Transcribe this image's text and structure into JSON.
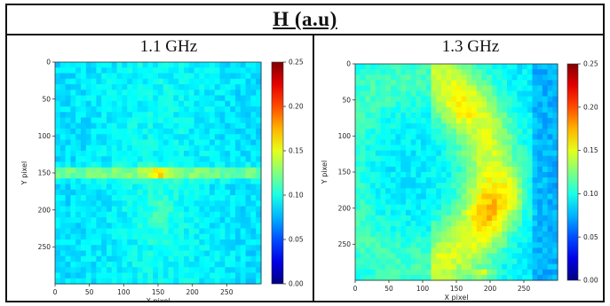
{
  "figure": {
    "title": "H (a.u)"
  },
  "chart_data": [
    {
      "type": "heatmap",
      "title": "1.1 GHz",
      "xlabel": "X pixel",
      "ylabel": "Y pixel",
      "xlim": [
        0,
        300
      ],
      "ylim": [
        300,
        0
      ],
      "x_ticks": [
        0,
        50,
        100,
        150,
        200,
        250
      ],
      "y_ticks": [
        0,
        50,
        100,
        150,
        200,
        250
      ],
      "colorbar": {
        "min": 0.0,
        "max": 0.25,
        "ticks": [
          "0.00",
          "0.05",
          "0.10",
          "0.15",
          "0.20",
          "0.25"
        ]
      },
      "colormap": "jet",
      "description_values": {
        "background": 0.09,
        "horizontal_band_y": 150,
        "band_value": 0.13,
        "peak_x": 150,
        "peak_y": 150,
        "peak_value": 0.19
      }
    },
    {
      "type": "heatmap",
      "title": "1.3 GHz",
      "xlabel": "X pixel",
      "ylabel": "Y pixel",
      "xlim": [
        0,
        300
      ],
      "ylim": [
        300,
        0
      ],
      "x_ticks": [
        0,
        50,
        100,
        150,
        200,
        250
      ],
      "y_ticks": [
        0,
        50,
        100,
        150,
        200,
        250
      ],
      "colorbar": {
        "min": 0.0,
        "max": 0.25,
        "ticks": [
          "0.00",
          "0.05",
          "0.10",
          "0.15",
          "0.20",
          "0.25"
        ]
      },
      "colormap": "jet",
      "description_values": {
        "background": 0.09,
        "arc_center_x": 180,
        "arc_value": 0.15,
        "bottom_peak_x": 195,
        "bottom_peak_value": 0.2
      }
    }
  ]
}
